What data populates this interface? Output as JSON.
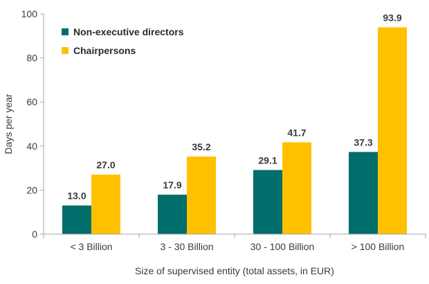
{
  "chart_data": {
    "type": "bar",
    "categories": [
      "< 3 Billion",
      "3 - 30 Billion",
      "30 - 100 Billion",
      "> 100 Billion"
    ],
    "series": [
      {
        "name": "Non-executive directors",
        "values": [
          13.0,
          17.9,
          29.1,
          37.3
        ],
        "labels": [
          "13.0",
          "17.9",
          "29.1",
          "37.3"
        ],
        "color": "#006e6a"
      },
      {
        "name": "Chairpersons",
        "values": [
          27.0,
          35.2,
          41.7,
          93.9
        ],
        "labels": [
          "27.0",
          "35.2",
          "41.7",
          "93.9"
        ],
        "color": "#ffc000"
      }
    ],
    "xlabel": "Size of supervised entity (total assets, in EUR)",
    "ylabel": "Days per year",
    "ylim": [
      0,
      100
    ],
    "yticks": [
      0,
      20,
      40,
      60,
      80,
      100
    ],
    "grid": false,
    "legend_position": "top-left"
  }
}
